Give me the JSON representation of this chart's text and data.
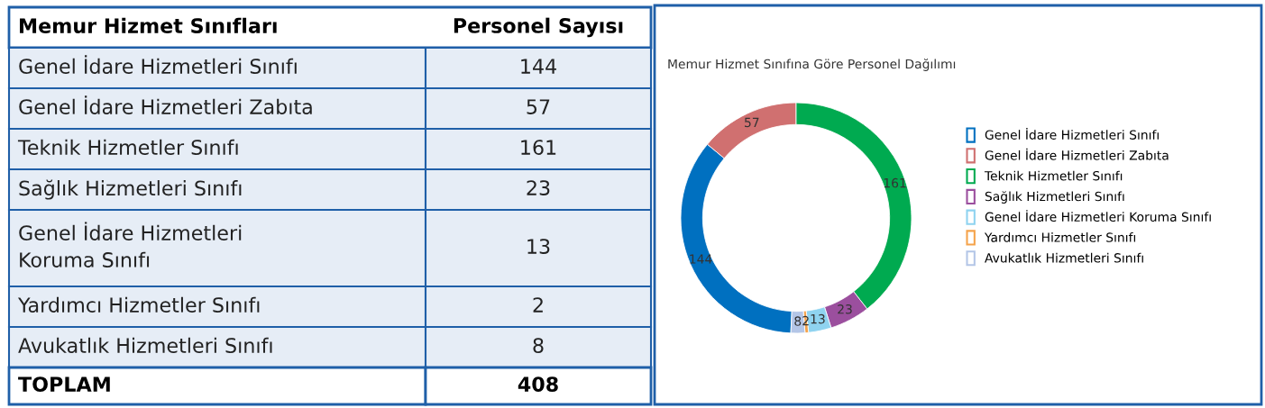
{
  "chart_data": [
    {
      "type": "other",
      "categories": [
        "Genel İdare Hizmetleri Sınıfı",
        "Genel İdare Hizmetleri Zabıta",
        "Teknik Hizmetler Sınıfı",
        "Sağlık Hizmetleri Sınıfı",
        "Genel İdare Hizmetleri Koruma Sınıfı",
        "Yardımcı Hizmetler Sınıfı",
        "Avukatlık Hizmetleri Sınıfı"
      ],
      "values": [
        144,
        57,
        161,
        23,
        13,
        2,
        8
      ],
      "data_labels": true,
      "annotations": [
        "Memur Hizmet Sınıfları",
        "Personel Sayısı",
        "TOPLAM"
      ],
      "totals": [
        "408"
      ]
    },
    {
      "type": "donut",
      "title": "Memur Hizmet Sınıfına Göre Personel Dağılımı",
      "categories": [
        "Genel İdare Hizmetleri Sınıfı",
        "Genel İdare Hizmetleri Zabıta",
        "Teknik Hizmetler Sınıfı",
        "Sağlık Hizmetleri Sınıfı",
        "Genel İdare Hizmetleri Koruma Sınıfı",
        "Yardımcı Hizmetler Sınıfı",
        "Avukatlık Hizmetleri Sınıfı"
      ],
      "values": [
        144,
        57,
        161,
        23,
        13,
        2,
        8
      ],
      "colors": [
        "#0070c0",
        "#d07070",
        "#00aa50",
        "#9b4f9e",
        "#8fd3f0",
        "#f5a34b",
        "#b4c6e7"
      ],
      "data_labels": true,
      "legend": "right"
    }
  ]
}
